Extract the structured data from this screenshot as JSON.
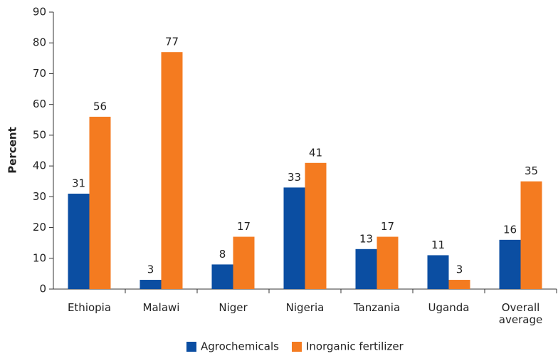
{
  "chart_data": {
    "type": "bar",
    "ylabel": "Percent",
    "categories": [
      "Ethiopia",
      "Malawi",
      "Niger",
      "Nigeria",
      "Tanzania",
      "Uganda",
      "Overall average"
    ],
    "series": [
      {
        "name": "Agrochemicals",
        "color": "#0b4ea2",
        "values": [
          31,
          3,
          8,
          33,
          13,
          11,
          16
        ]
      },
      {
        "name": "Inorganic fertilizer",
        "color": "#f47b20",
        "values": [
          56,
          77,
          17,
          41,
          17,
          3,
          35
        ]
      }
    ],
    "ylim": [
      0,
      90
    ],
    "yticks": [
      0,
      10,
      20,
      30,
      40,
      50,
      60,
      70,
      80,
      90
    ],
    "data_labels": true
  }
}
